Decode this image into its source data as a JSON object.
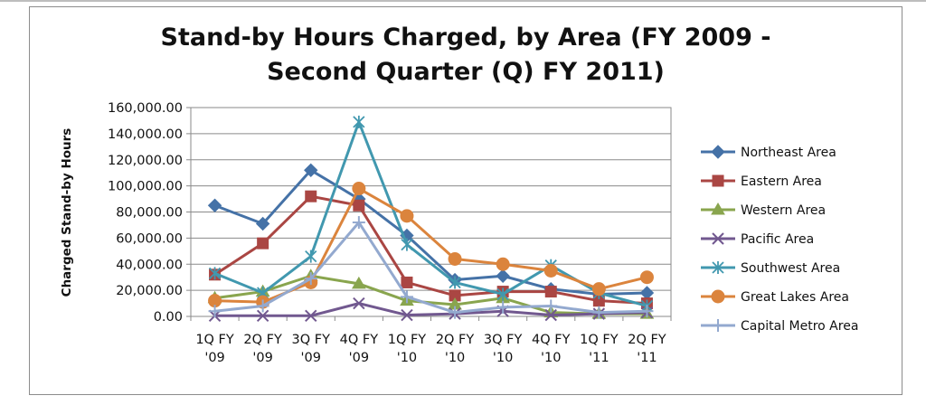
{
  "chart_data": {
    "type": "line",
    "title_lines": [
      "Stand-by Hours Charged, by Area (FY 2009 -",
      "Second Quarter (Q) FY 2011)"
    ],
    "ylabel": "Charged Stand-by Hours",
    "xlabel": "",
    "ylim": [
      0,
      160000
    ],
    "yticks": [
      0,
      20000,
      40000,
      60000,
      80000,
      100000,
      120000,
      140000,
      160000
    ],
    "ytick_labels": [
      "0.00",
      "20,000.00",
      "40,000.00",
      "60,000.00",
      "80,000.00",
      "100,000.00",
      "120,000.00",
      "140,000.00",
      "160,000.00"
    ],
    "categories": [
      [
        "1Q FY",
        "'09"
      ],
      [
        "2Q FY",
        "'09"
      ],
      [
        "3Q FY",
        "'09"
      ],
      [
        "4Q FY",
        "'09"
      ],
      [
        "1Q FY",
        "'10"
      ],
      [
        "2Q FY",
        "'10"
      ],
      [
        "3Q FY",
        "'10"
      ],
      [
        "4Q FY",
        "'10"
      ],
      [
        "1Q FY",
        "'11"
      ],
      [
        "2Q FY",
        "'11"
      ]
    ],
    "grid": "horizontal",
    "legend_position": "right",
    "series": [
      {
        "name": "Northeast Area",
        "color": "#4572A7",
        "marker": "diamond",
        "values": [
          85000,
          71000,
          112000,
          90000,
          62000,
          28000,
          31000,
          21000,
          17000,
          18000
        ]
      },
      {
        "name": "Eastern Area",
        "color": "#AA4643",
        "marker": "square",
        "values": [
          32000,
          56000,
          92000,
          85000,
          26000,
          16000,
          19000,
          19000,
          12000,
          10000
        ]
      },
      {
        "name": "Western Area",
        "color": "#89A54E",
        "marker": "triangle",
        "values": [
          14000,
          19000,
          31000,
          25000,
          12000,
          9000,
          14000,
          3000,
          2000,
          2000
        ]
      },
      {
        "name": "Pacific Area",
        "color": "#71588F",
        "marker": "x",
        "values": [
          500,
          500,
          500,
          10000,
          1000,
          2000,
          4000,
          1000,
          2000,
          3000
        ]
      },
      {
        "name": "Southwest Area",
        "color": "#4198AF",
        "marker": "star",
        "values": [
          33000,
          18000,
          46000,
          149000,
          55000,
          26000,
          17000,
          39000,
          18000,
          8000
        ]
      },
      {
        "name": "Great Lakes Area",
        "color": "#DB843D",
        "marker": "circle",
        "values": [
          12000,
          11000,
          26000,
          98000,
          77000,
          44000,
          40000,
          35000,
          21000,
          30000
        ]
      },
      {
        "name": "Capital Metro Area",
        "color": "#93A9CF",
        "marker": "plus",
        "values": [
          4000,
          8000,
          29000,
          72000,
          15000,
          3000,
          7000,
          8000,
          3000,
          4000
        ]
      }
    ]
  }
}
